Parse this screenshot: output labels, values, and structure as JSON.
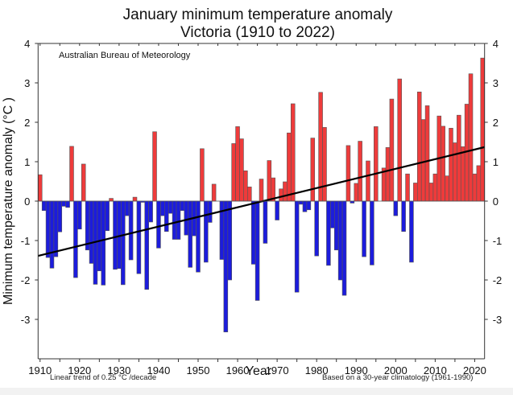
{
  "chart_data": {
    "type": "bar",
    "title": "January minimum temperature anomaly",
    "subtitle": "Victoria (1910 to 2022)",
    "xlabel": "Year",
    "ylabel": "Minimum temperature anomaly (°C )",
    "xlim": [
      1910,
      2022
    ],
    "ylim": [
      -4,
      4
    ],
    "xticks": [
      1910,
      1920,
      1930,
      1940,
      1950,
      1960,
      1970,
      1980,
      1990,
      2000,
      2010,
      2020
    ],
    "xticks_minor_step": 5,
    "yticks": [
      -3,
      -2,
      -1,
      0,
      1,
      2,
      3,
      4
    ],
    "grid": false,
    "positive_color": "#ee3b3b",
    "negative_color": "#1c1cdc",
    "bar_edge_color": "#555555",
    "trend_color": "#000000",
    "credit": "Australian Bureau of Meteorology",
    "trend_note": "Linear trend of 0.25 °C /decade",
    "climatology_note": "Based on a 30-year climatology (1961-1990)",
    "trend": {
      "start_year": 1910,
      "start_value": -1.39,
      "end_year": 2022,
      "end_value": 1.37,
      "rate_per_decade": 0.25
    },
    "start_year": 1910,
    "values": [
      0.67,
      -0.24,
      -1.43,
      -1.7,
      -1.41,
      -0.78,
      -0.13,
      -0.16,
      1.39,
      -1.94,
      -0.71,
      0.94,
      -1.24,
      -1.58,
      -2.11,
      -1.77,
      -2.13,
      -0.75,
      0.07,
      -1.73,
      -1.71,
      -2.12,
      -0.37,
      -1.49,
      0.1,
      -1.84,
      -0.03,
      -2.24,
      -0.53,
      1.76,
      -1.19,
      -0.37,
      -0.77,
      -0.31,
      -0.97,
      -0.97,
      -0.24,
      -0.86,
      -1.68,
      -0.88,
      -1.8,
      1.33,
      -1.55,
      -0.54,
      0.43,
      0.0,
      -1.48,
      -3.32,
      -2.0,
      1.46,
      1.89,
      1.58,
      0.77,
      0.36,
      -1.6,
      -2.52,
      0.56,
      -1.07,
      1.03,
      0.59,
      -0.48,
      0.31,
      0.49,
      1.73,
      2.47,
      -2.31,
      -0.08,
      -0.27,
      -0.22,
      1.6,
      -1.39,
      2.76,
      1.87,
      -1.63,
      -0.68,
      -1.24,
      -2.0,
      -2.39,
      1.41,
      -0.05,
      0.45,
      1.52,
      -1.41,
      1.02,
      -1.62,
      1.89,
      0.0,
      0.84,
      1.36,
      2.59,
      -0.37,
      3.1,
      -0.77,
      0.69,
      -1.55,
      0.46,
      2.77,
      2.07,
      2.42,
      0.46,
      0.69,
      2.16,
      1.9,
      0.64,
      1.85,
      1.48,
      2.18,
      1.38,
      2.46,
      3.23,
      0.69,
      0.9,
      3.63
    ]
  }
}
